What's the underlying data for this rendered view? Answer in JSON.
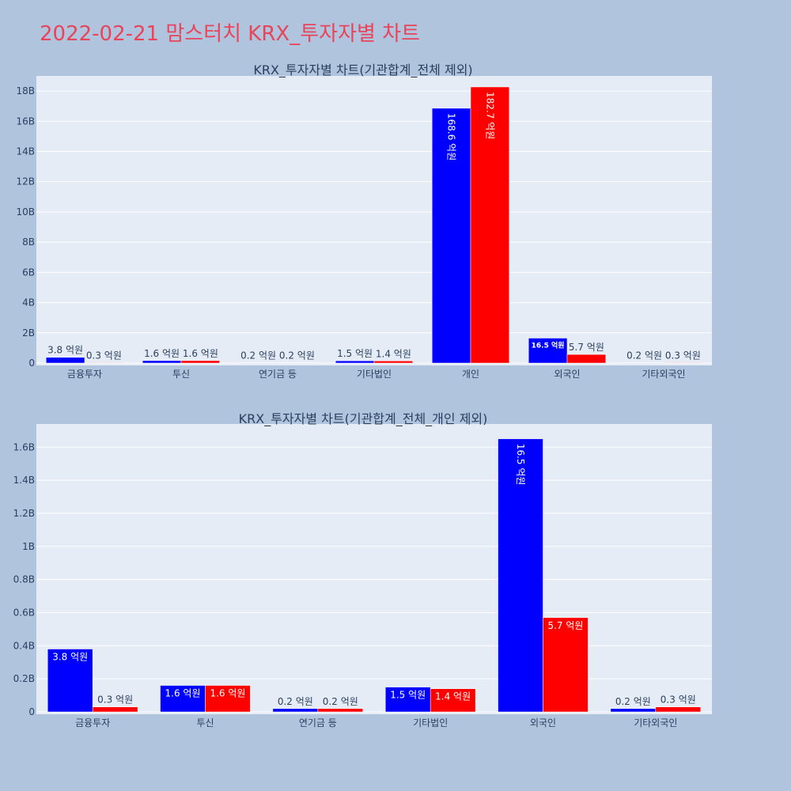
{
  "page": {
    "title": "2022-02-21 맘스터치 KRX_투자자별 차트"
  },
  "colors": {
    "background": "#b0c4de",
    "plot_bg": "#e5ecf6",
    "grid": "#ffffff",
    "title": "#e8445a",
    "text": "#2a3f5f"
  },
  "chart_data": [
    {
      "type": "bar",
      "title": "KRX_투자자별 차트(기관합계_전체 제외)",
      "categories": [
        "금융투자",
        "투신",
        "연기금 등",
        "기타법인",
        "개인",
        "외국인",
        "기타외국인"
      ],
      "series": [
        {
          "color": "#0000ff",
          "values": [
            380000000,
            160000000,
            20000000,
            150000000,
            16860000000,
            1650000000,
            20000000
          ],
          "labels": [
            "3.8 억원",
            "1.6 억원",
            "0.2 억원",
            "1.5 억원",
            "168.6 억원",
            "16.5 억원",
            "0.2 억원"
          ]
        },
        {
          "color": "#ff0000",
          "values": [
            30000000,
            160000000,
            20000000,
            140000000,
            18270000000,
            570000000,
            30000000
          ],
          "labels": [
            "0.3 억원",
            "1.6 억원",
            "0.2 억원",
            "1.4 억원",
            "182.7 억원",
            "5.7 억원",
            "0.3 억원"
          ]
        }
      ],
      "ylim": [
        0,
        19000000000
      ],
      "yticks": [
        0,
        2000000000,
        4000000000,
        6000000000,
        8000000000,
        10000000000,
        12000000000,
        14000000000,
        16000000000,
        18000000000
      ],
      "ytick_labels": [
        "0",
        "2B",
        "4B",
        "6B",
        "8B",
        "10B",
        "12B",
        "14B",
        "16B",
        "18B"
      ],
      "grid": true
    },
    {
      "type": "bar",
      "title": "KRX_투자자별 차트(기관합계_전체_개인 제외)",
      "categories": [
        "금융투자",
        "투신",
        "연기금 등",
        "기타법인",
        "외국인",
        "기타외국인"
      ],
      "series": [
        {
          "color": "#0000ff",
          "values": [
            380000000,
            160000000,
            20000000,
            150000000,
            1650000000,
            20000000
          ],
          "labels": [
            "3.8 억원",
            "1.6 억원",
            "0.2 억원",
            "1.5 억원",
            "16.5 억원",
            "0.2 억원"
          ]
        },
        {
          "color": "#ff0000",
          "values": [
            30000000,
            160000000,
            20000000,
            140000000,
            570000000,
            30000000
          ],
          "labels": [
            "0.3 억원",
            "1.6 억원",
            "0.2 억원",
            "1.4 억원",
            "5.7 억원",
            "0.3 억원"
          ]
        }
      ],
      "ylim": [
        0,
        1740000000
      ],
      "yticks": [
        0,
        200000000,
        400000000,
        600000000,
        800000000,
        1000000000,
        1200000000,
        1400000000,
        1600000000
      ],
      "ytick_labels": [
        "0",
        "0.2B",
        "0.4B",
        "0.6B",
        "0.8B",
        "1B",
        "1.2B",
        "1.4B",
        "1.6B"
      ],
      "grid": true
    }
  ]
}
